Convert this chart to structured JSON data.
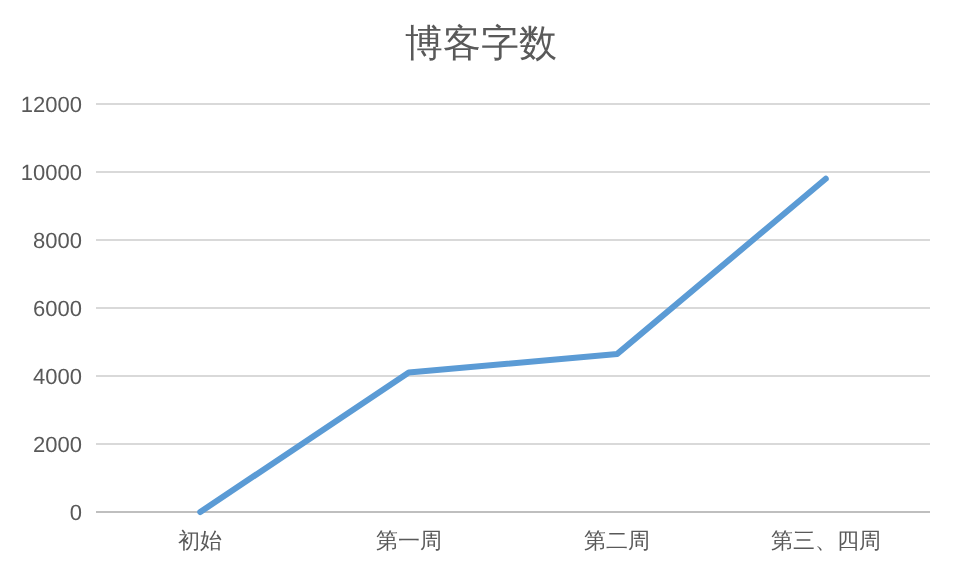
{
  "chart_data": {
    "type": "line",
    "title": "博客字数",
    "categories": [
      "初始",
      "第一周",
      "第二周",
      "第三、四周"
    ],
    "values": [
      0,
      4100,
      4650,
      9800
    ],
    "color": "#5b9bd5",
    "ylim": [
      0,
      12000
    ],
    "yticks": [
      0,
      2000,
      4000,
      6000,
      8000,
      10000,
      12000
    ],
    "grid": "y"
  }
}
